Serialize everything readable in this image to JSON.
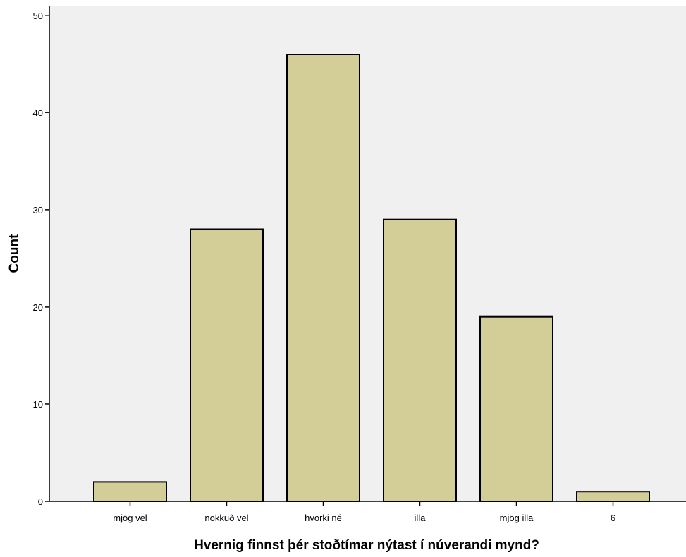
{
  "chart_data": {
    "type": "bar",
    "title": "",
    "xlabel": "Hvernig finnst þér stoðtímar nýtast í núverandi mynd?",
    "ylabel": "Count",
    "categories": [
      "mjög vel",
      "nokkuð vel",
      "hvorki né",
      "illa",
      "mjög illa",
      "6"
    ],
    "values": [
      2,
      28,
      46,
      29,
      19,
      1
    ],
    "ylim": [
      0,
      51
    ],
    "yticks": [
      0,
      10,
      20,
      30,
      40,
      50
    ],
    "grid": false,
    "legend": "none",
    "colors": {
      "plot_background": "#f0f0f0",
      "bar_fill": "#d3ce97",
      "bar_stroke": "#000000",
      "axis": "#000000"
    }
  }
}
